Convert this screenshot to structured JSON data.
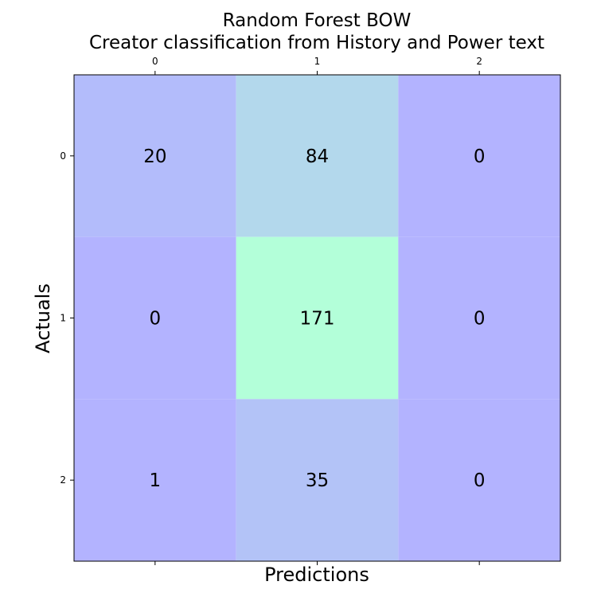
{
  "chart_data": {
    "type": "heatmap",
    "title": "Random Forest BOW",
    "subtitle": "Creator classification from History and Power text",
    "xlabel": "Predictions",
    "ylabel": "Actuals",
    "x_categories": [
      "0",
      "1",
      "2"
    ],
    "y_categories": [
      "0",
      "1",
      "2"
    ],
    "values": [
      [
        20,
        84,
        0
      ],
      [
        0,
        171,
        0
      ],
      [
        1,
        35,
        0
      ]
    ],
    "colormap": {
      "low": "#b3b3ff",
      "high": "#b3ffd9"
    },
    "grid": false
  }
}
